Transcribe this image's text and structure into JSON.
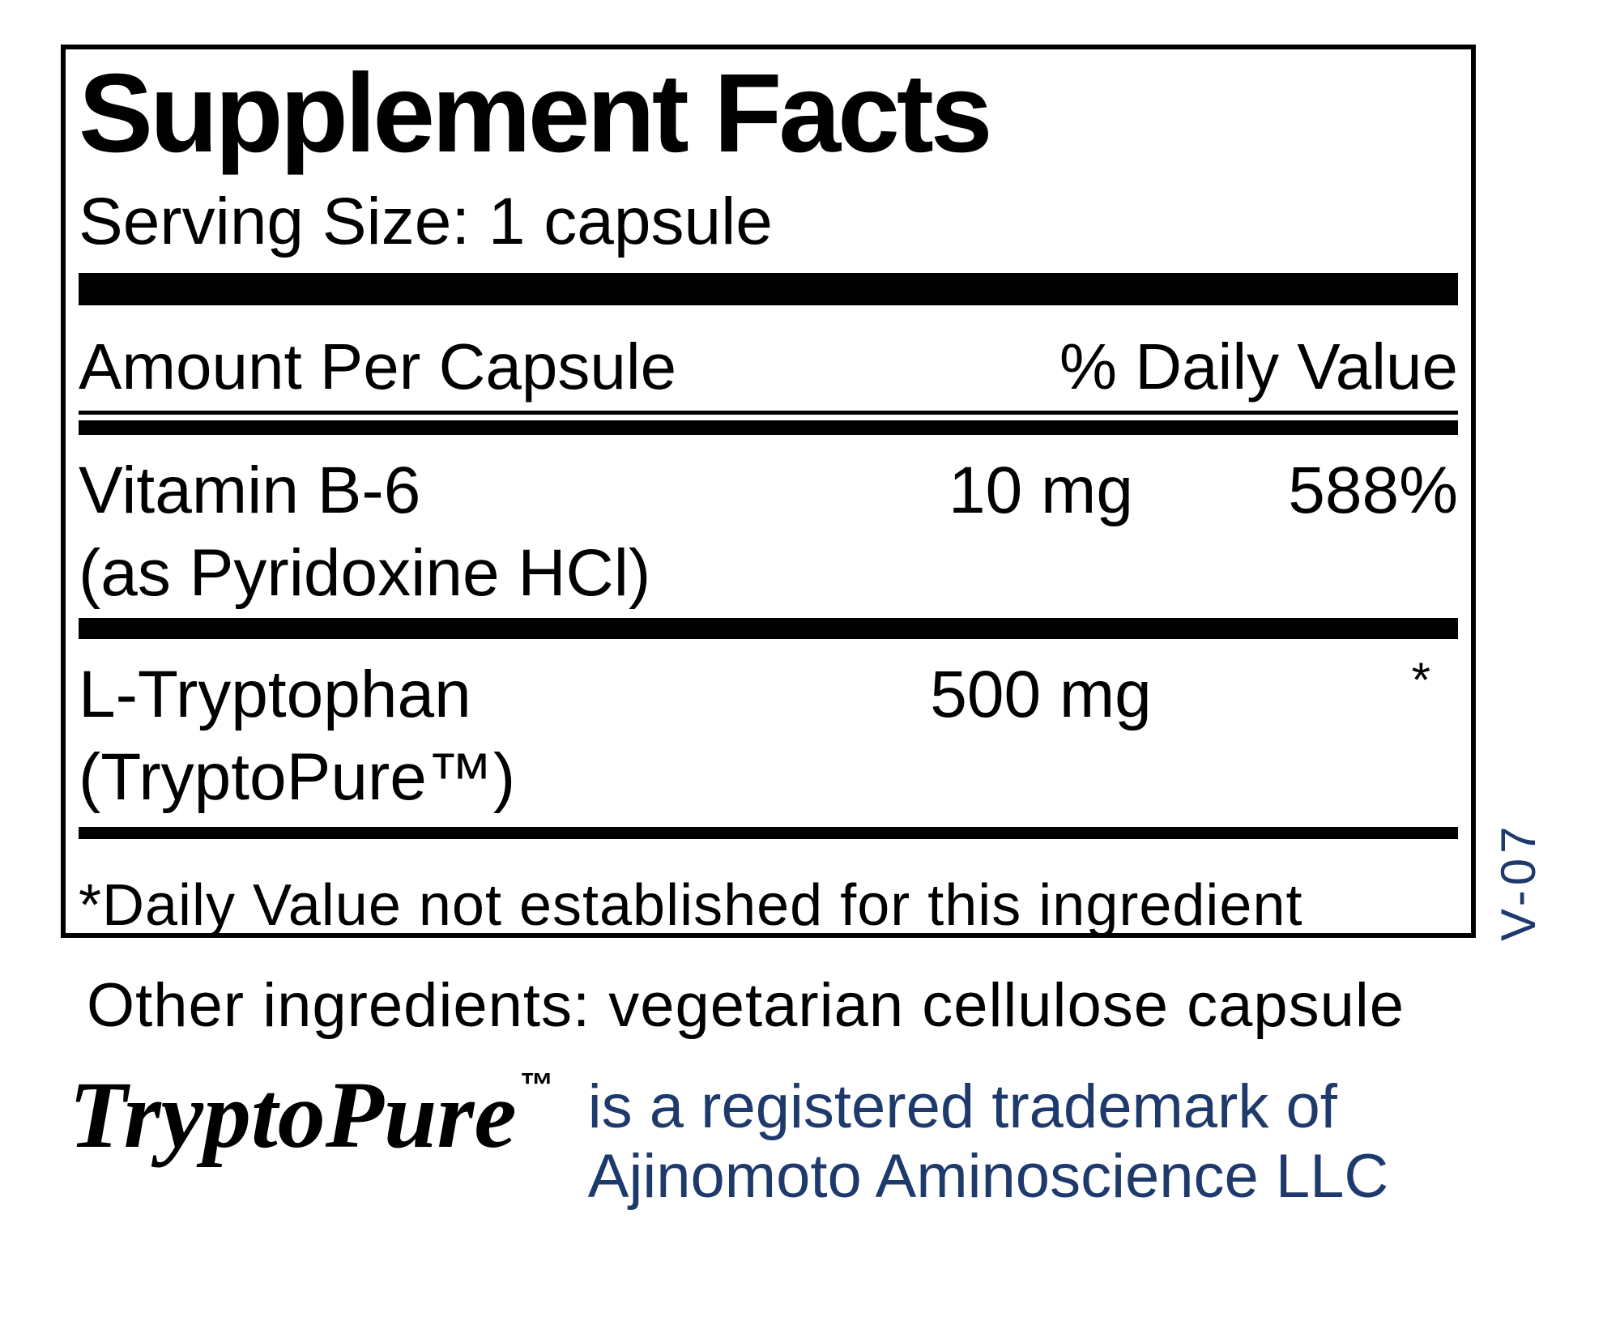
{
  "panel": {
    "title": "Supplement Facts",
    "serving_size": "Serving Size: 1 capsule",
    "columns": {
      "amount_header": "Amount Per Capsule",
      "daily_value_header": "% Daily Value"
    },
    "rows": [
      {
        "name_line1": "Vitamin B-6",
        "name_line2": "(as Pyridoxine HCl)",
        "amount": "10 mg",
        "daily_value": "588%"
      },
      {
        "name_line1": "L-Tryptophan",
        "name_line2": "(TryptoPure™)",
        "amount": "500 mg",
        "daily_value": "*"
      }
    ],
    "footnote": "*Daily Value not established for this ingredient"
  },
  "other_ingredients": "Other ingredients: vegetarian cellulose capsule",
  "trademark": {
    "brand": "TryptoPure",
    "tm_symbol": "™",
    "note_line1": "is a registered trademark of",
    "note_line2": "Ajinomoto Aminoscience LLC"
  },
  "version_code": "V-07",
  "colors": {
    "ink": "#000000",
    "navy": "#1e3a6c"
  }
}
